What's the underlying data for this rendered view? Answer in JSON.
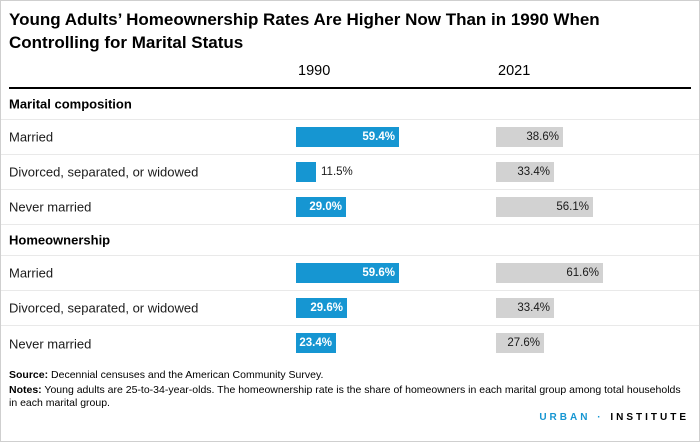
{
  "title": "Young Adults’ Homeownership Rates Are Higher Now Than in 1990 When Controlling for Marital Status",
  "chart_data": {
    "type": "bar",
    "orientation": "horizontal",
    "columns": [
      "1990",
      "2021"
    ],
    "colors": [
      "#1696d2",
      "#d2d2d2"
    ],
    "xlim": [
      0,
      100
    ],
    "value_unit": "percent",
    "sections": [
      {
        "header": "Marital composition",
        "rows": [
          {
            "label": "Married",
            "values": [
              59.4,
              38.6
            ],
            "display": [
              "59.4%",
              "38.6%"
            ]
          },
          {
            "label": "Divorced, separated, or widowed",
            "values": [
              11.5,
              33.4
            ],
            "display": [
              "11.5%",
              "33.4%"
            ]
          },
          {
            "label": "Never married",
            "values": [
              29.0,
              56.1
            ],
            "display": [
              "29.0%",
              "56.1%"
            ]
          }
        ]
      },
      {
        "header": "Homeownership",
        "rows": [
          {
            "label": "Married",
            "values": [
              59.6,
              61.6
            ],
            "display": [
              "59.6%",
              "61.6%"
            ]
          },
          {
            "label": "Divorced, separated, or widowed",
            "values": [
              29.6,
              33.4
            ],
            "display": [
              "29.6%",
              "33.4%"
            ]
          },
          {
            "label": "Never married",
            "values": [
              23.4,
              27.6
            ],
            "display": [
              "23.4%",
              "27.6%"
            ]
          }
        ]
      }
    ]
  },
  "footer": {
    "source_label": "Source:",
    "source_text": "Decennial censuses and the American Community Survey.",
    "notes_label": "Notes:",
    "notes_text": "Young adults are 25-to-34-year-olds. The homeownership rate is the share of homeowners in each marital group among total households in each marital group.",
    "logo": {
      "part1": "URBAN",
      "separator": "·",
      "part2": "INSTITUTE"
    }
  }
}
